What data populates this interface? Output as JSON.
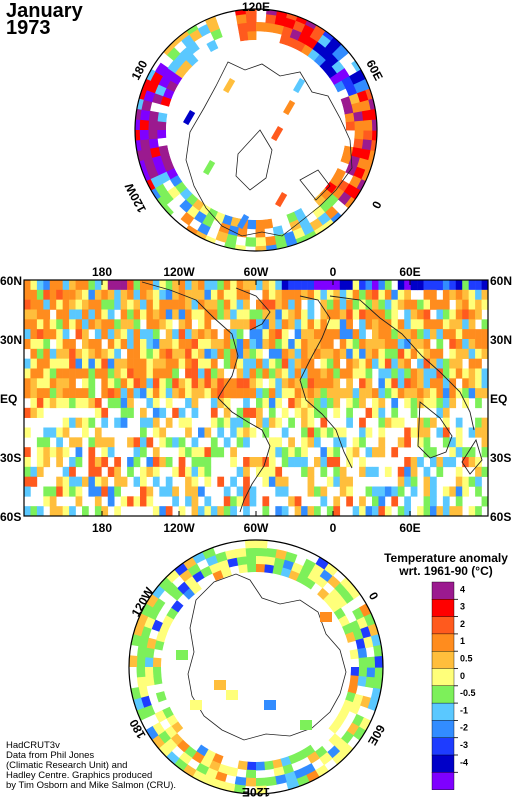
{
  "title": {
    "line1": "January",
    "line2": "1973"
  },
  "credits": [
    "HadCRUT3v",
    "Data from Phil Jones",
    "(Climatic Research Unit) and",
    "Hadley Centre.  Graphics produced",
    "by Tim Osborn and Mike Salmon (CRU)."
  ],
  "north_map": {
    "labels": {
      "top": "120E",
      "upper_left": "180",
      "upper_right": "60E",
      "lower_left": "120W",
      "lower_right": "0"
    }
  },
  "world_map": {
    "lon_labels": [
      "180",
      "120W",
      "60W",
      "0",
      "60E"
    ],
    "lat_labels": [
      "60N",
      "30N",
      "EQ",
      "30S",
      "60S"
    ]
  },
  "south_map": {
    "labels": {
      "top_left": "120W",
      "top_right": "0",
      "bottom_left": "180",
      "bottom_right": "60E",
      "bottom": "120E"
    }
  },
  "legend": {
    "title_line1": "Temperature anomaly",
    "title_line2": "wrt. 1961-90  (°C)",
    "tick_labels": [
      "4",
      "3",
      "2",
      "1",
      "0.5",
      "0",
      "-0.5",
      "-1",
      "-2",
      "-3",
      "-4"
    ],
    "colors": [
      "#9b1a8f",
      "#ff0000",
      "#ff5a1e",
      "#ff8c1e",
      "#ffbe3c",
      "#ffff7a",
      "#7df05a",
      "#5ac8ff",
      "#328cff",
      "#1e3cff",
      "#0000c8",
      "#7f00ff"
    ]
  }
}
